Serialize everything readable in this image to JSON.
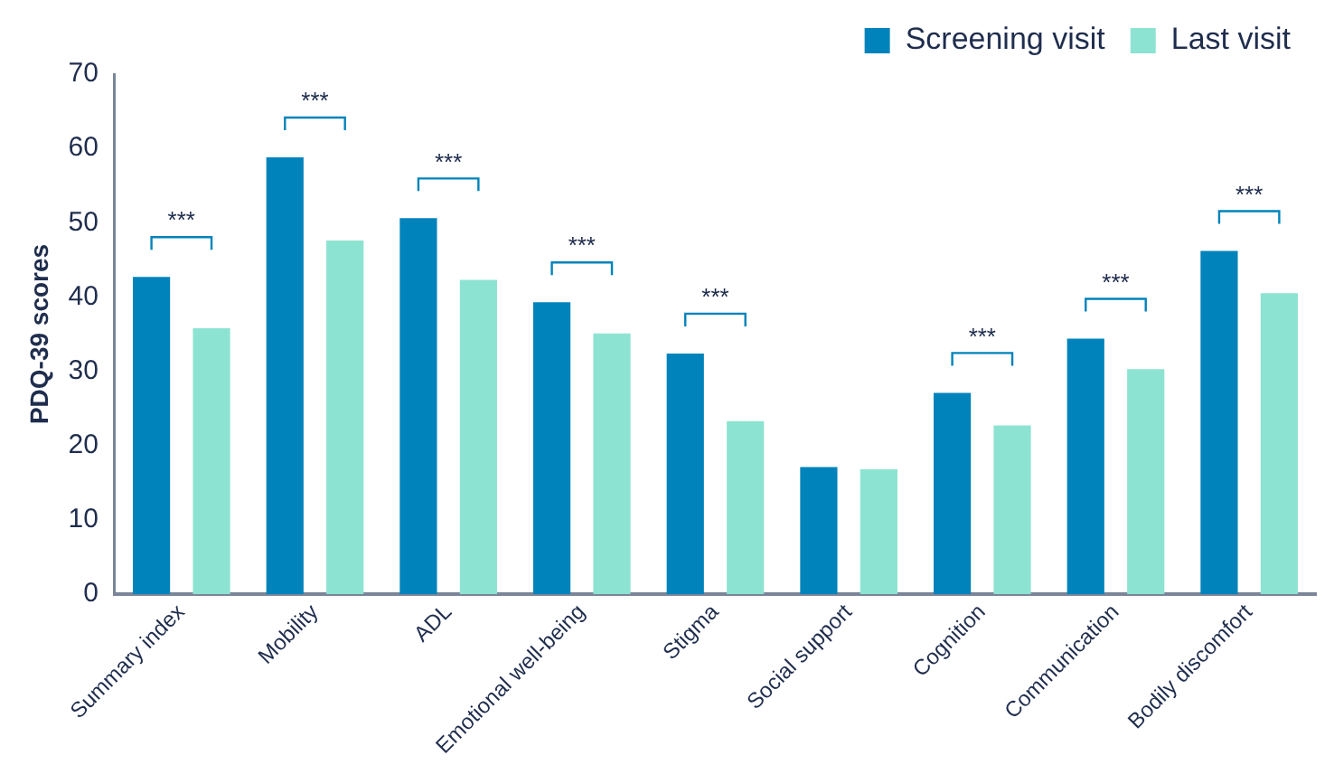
{
  "chart_data": {
    "type": "bar",
    "ylabel": "PDQ-39 scores",
    "categories": [
      "Summary index",
      "Mobility",
      "ADL",
      "Emotional well-being",
      "Stigma",
      "Social support",
      "Cognition",
      "Communication",
      "Bodily discomfort"
    ],
    "series": [
      {
        "name": "Screening visit",
        "color": "#0083bb",
        "values": [
          42.7,
          58.8,
          50.6,
          39.3,
          32.4,
          17.1,
          27.1,
          34.4,
          46.2
        ]
      },
      {
        "name": "Last visit",
        "color": "#8de3d2",
        "values": [
          35.8,
          47.6,
          42.3,
          35.1,
          23.3,
          16.8,
          22.7,
          30.3,
          40.5
        ]
      }
    ],
    "ylim": [
      0,
      70
    ],
    "yticks": [
      0,
      10,
      20,
      30,
      40,
      50,
      60,
      70
    ],
    "grid": false,
    "legend": "top right",
    "annotations": [
      "***",
      "***",
      "***",
      "***",
      "***",
      "***",
      "***",
      "***"
    ]
  }
}
